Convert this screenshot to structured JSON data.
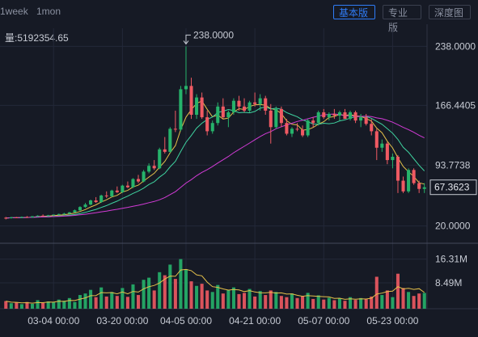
{
  "toolbar": {
    "tf_week": "1week",
    "tf_month": "1mon",
    "btn_basic": "基本版",
    "btn_pro": "专业版",
    "btn_depth": "深度图"
  },
  "volume_readout": "量:5192354.65",
  "colors": {
    "up": "#26b36b",
    "down": "#f05a63",
    "ma_yellow": "#e5c14a",
    "ma_green": "#3fd3a0",
    "ma_magenta": "#d23bd6",
    "bg": "#161a25",
    "grid": "#232838"
  },
  "chart_data": {
    "type": "candlestick",
    "price_axis": {
      "ticks": [
        "238.0000",
        "166.4405",
        "93.7738",
        "20.0000"
      ],
      "current_price": "67.3623"
    },
    "volume_axis": {
      "ticks": [
        "16.31M",
        "8.49M"
      ]
    },
    "high_annotation": "238.0000",
    "x_ticks": [
      "03-04 00:00",
      "03-20 00:00",
      "04-05 00:00",
      "04-21 00:00",
      "05-07 00:00",
      "05-23 00:00"
    ],
    "ylim": [
      0,
      260
    ],
    "candles": [
      [
        30,
        31,
        28,
        29.5
      ],
      [
        29.5,
        31,
        29,
        30.5
      ],
      [
        30.5,
        31,
        29.8,
        30
      ],
      [
        30,
        31.5,
        29.5,
        31
      ],
      [
        31,
        32,
        30,
        30.5
      ],
      [
        30.5,
        32,
        30,
        31.8
      ],
      [
        31.8,
        33,
        31,
        32.5
      ],
      [
        32.5,
        34,
        31.5,
        32
      ],
      [
        32,
        33.5,
        31.5,
        33
      ],
      [
        33,
        34,
        32,
        33.8
      ],
      [
        33.8,
        35,
        33,
        34.5
      ],
      [
        34.5,
        36,
        33.5,
        35
      ],
      [
        35,
        37,
        34.5,
        36.5
      ],
      [
        36.5,
        40,
        36,
        39
      ],
      [
        39,
        44,
        38,
        43
      ],
      [
        43,
        48,
        42,
        46
      ],
      [
        46,
        52,
        45,
        51
      ],
      [
        51,
        55,
        48,
        49
      ],
      [
        49,
        58,
        48,
        57
      ],
      [
        57,
        62,
        54,
        56
      ],
      [
        56,
        64,
        55,
        63
      ],
      [
        63,
        68,
        60,
        61
      ],
      [
        61,
        70,
        60,
        69
      ],
      [
        69,
        74,
        66,
        67
      ],
      [
        67,
        78,
        66,
        77
      ],
      [
        77,
        82,
        72,
        74
      ],
      [
        74,
        88,
        73,
        86
      ],
      [
        86,
        96,
        84,
        93
      ],
      [
        93,
        100,
        88,
        90
      ],
      [
        90,
        115,
        89,
        113
      ],
      [
        113,
        128,
        108,
        110
      ],
      [
        110,
        140,
        109,
        138
      ],
      [
        138,
        160,
        134,
        137
      ],
      [
        137,
        190,
        135,
        186
      ],
      [
        186,
        238,
        180,
        190
      ],
      [
        190,
        200,
        150,
        155
      ],
      [
        155,
        180,
        150,
        176
      ],
      [
        176,
        182,
        150,
        152
      ],
      [
        152,
        160,
        130,
        135
      ],
      [
        135,
        148,
        132,
        145
      ],
      [
        145,
        170,
        142,
        165
      ],
      [
        165,
        175,
        150,
        152
      ],
      [
        152,
        160,
        140,
        158
      ],
      [
        158,
        175,
        155,
        172
      ],
      [
        172,
        178,
        160,
        165
      ],
      [
        165,
        175,
        158,
        160
      ],
      [
        160,
        172,
        158,
        170
      ],
      [
        170,
        182,
        165,
        168
      ],
      [
        168,
        180,
        160,
        175
      ],
      [
        175,
        178,
        155,
        160
      ],
      [
        160,
        168,
        120,
        140
      ],
      [
        140,
        165,
        138,
        162
      ],
      [
        162,
        165,
        140,
        145
      ],
      [
        145,
        150,
        130,
        132
      ],
      [
        132,
        140,
        128,
        138
      ],
      [
        138,
        145,
        135,
        137
      ],
      [
        137,
        142,
        128,
        130
      ],
      [
        130,
        150,
        128,
        148
      ],
      [
        148,
        152,
        140,
        145
      ],
      [
        145,
        160,
        142,
        158
      ],
      [
        158,
        162,
        150,
        152
      ],
      [
        152,
        158,
        148,
        156
      ],
      [
        156,
        162,
        150,
        154
      ],
      [
        154,
        160,
        148,
        158
      ],
      [
        158,
        162,
        150,
        150
      ],
      [
        150,
        160,
        148,
        158
      ],
      [
        158,
        160,
        145,
        148
      ],
      [
        148,
        156,
        140,
        152
      ],
      [
        152,
        156,
        142,
        144
      ],
      [
        144,
        150,
        130,
        135
      ],
      [
        135,
        138,
        100,
        115
      ],
      [
        115,
        125,
        110,
        120
      ],
      [
        120,
        122,
        95,
        100
      ],
      [
        100,
        108,
        90,
        104
      ],
      [
        104,
        106,
        60,
        75
      ],
      [
        75,
        80,
        60,
        62
      ],
      [
        62,
        90,
        60,
        88
      ],
      [
        88,
        90,
        70,
        72
      ],
      [
        72,
        75,
        60,
        65
      ],
      [
        65,
        72,
        60,
        67
      ]
    ],
    "volumes": [
      2.5,
      1.8,
      2.0,
      1.5,
      2.2,
      1.6,
      2.8,
      1.9,
      2.4,
      2.1,
      3.0,
      2.6,
      3.5,
      2.2,
      4.5,
      5.0,
      6.2,
      3.8,
      7.0,
      4.0,
      5.5,
      4.2,
      6.8,
      3.9,
      8.0,
      4.5,
      9.5,
      10.2,
      6.0,
      12.0,
      11.0,
      14.5,
      9.8,
      16.31,
      13.0,
      9.0,
      7.5,
      8.2,
      6.0,
      5.5,
      7.8,
      5.0,
      6.2,
      7.0,
      4.8,
      5.2,
      6.5,
      4.0,
      5.8,
      4.5,
      6.0,
      5.5,
      4.2,
      3.8,
      5.0,
      3.5,
      4.0,
      5.2,
      3.2,
      4.4,
      3.0,
      3.6,
      2.8,
      3.4,
      2.6,
      3.8,
      2.9,
      3.5,
      3.1,
      4.0,
      10.5,
      4.5,
      6.0,
      3.8,
      11.5,
      6.8,
      5.5,
      4.2,
      5.0,
      5.19
    ],
    "vol_max": 17
  }
}
